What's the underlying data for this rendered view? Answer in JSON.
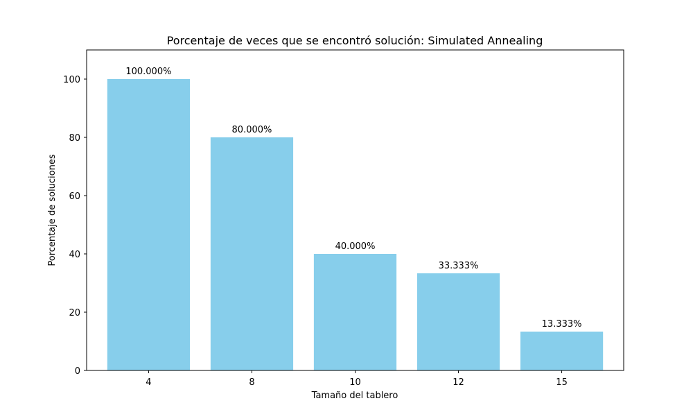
{
  "chart_data": {
    "type": "bar",
    "title": "Porcentaje de veces que se encontró solución: Simulated Annealing",
    "xlabel": "Tamaño del tablero",
    "ylabel": "Porcentaje de soluciones",
    "categories": [
      "4",
      "8",
      "10",
      "12",
      "15"
    ],
    "values": [
      100.0,
      80.0,
      40.0,
      33.333,
      13.333
    ],
    "data_labels": [
      "100.000%",
      "80.000%",
      "40.000%",
      "33.333%",
      "13.333%"
    ],
    "ylim": [
      0,
      110
    ],
    "yticks": [
      0,
      20,
      40,
      60,
      80,
      100
    ],
    "bar_color": "#87ceeb",
    "grid": false,
    "legend": "none"
  }
}
